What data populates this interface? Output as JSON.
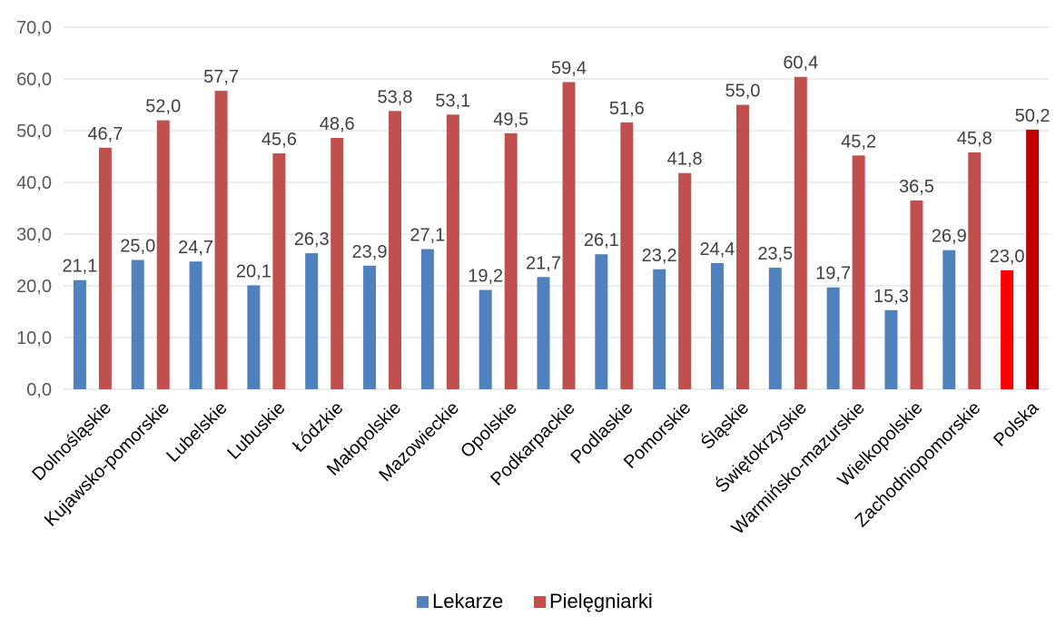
{
  "chart_data": {
    "type": "bar",
    "categories": [
      "Dolnośląskie",
      "Kujawsko-pomorskie",
      "Lubelskie",
      "Lubuskie",
      "Łódzkie",
      "Małopolskie",
      "Mazowieckie",
      "Opolskie",
      "Podkarpackie",
      "Podlaskie",
      "Pomorskie",
      "Śląskie",
      "Świętokrzyskie",
      "Warmińsko-mazurskie",
      "Wielkopolskie",
      "Zachodniopomorskie",
      "Polska"
    ],
    "series": [
      {
        "name": "Lekarze",
        "color": "#4f81bd",
        "highlight_color": "#ff0000",
        "values": [
          21.1,
          25.0,
          24.7,
          20.1,
          26.3,
          23.9,
          27.1,
          19.2,
          21.7,
          26.1,
          23.2,
          24.4,
          23.5,
          19.7,
          15.3,
          26.9,
          23.0
        ]
      },
      {
        "name": "Pielęgniarki",
        "color": "#c0504d",
        "highlight_color": "#c00000",
        "values": [
          46.7,
          52.0,
          57.7,
          45.6,
          48.6,
          53.8,
          53.1,
          49.5,
          59.4,
          51.6,
          41.8,
          55.0,
          60.4,
          45.2,
          36.5,
          45.8,
          50.2
        ]
      }
    ],
    "highlight_category": "Polska",
    "ylim": [
      0,
      70
    ],
    "ytick_step": 10,
    "decimal_separator": ",",
    "grid": true,
    "legend_position": "bottom",
    "title": "",
    "xlabel": "",
    "ylabel": ""
  }
}
